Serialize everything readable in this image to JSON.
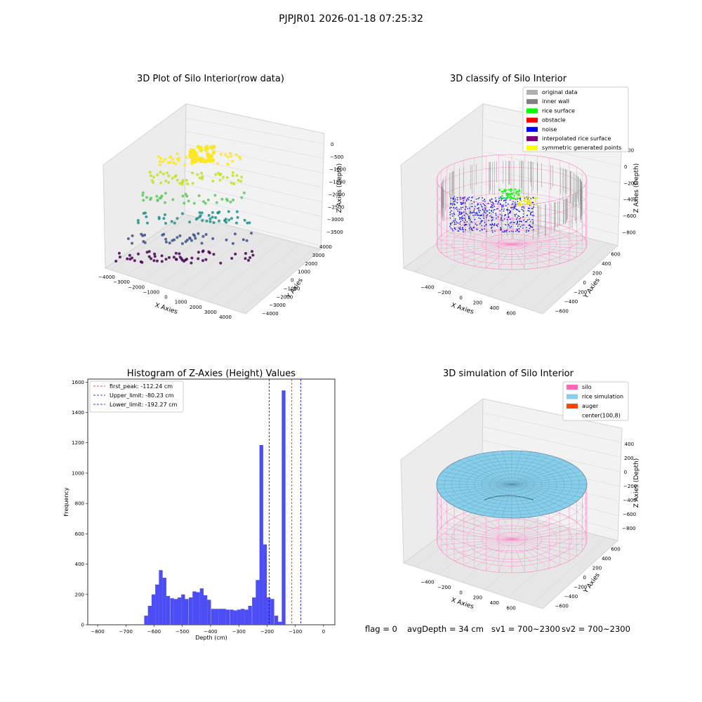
{
  "suptitle": "PJPJR01 2026-01-18 07:25:32",
  "chart_data": [
    {
      "type": "scatter",
      "projection": "3d",
      "title": "3D Plot of Silo Interior(row data)",
      "xlabel": "X Axies",
      "ylabel": "Y Axies",
      "zlabel": "Z Axies (Depth)",
      "x_ticks": [
        "−4000",
        "−3000",
        "−2000",
        "−1000",
        "0",
        "1000",
        "2000",
        "3000",
        "4000"
      ],
      "y_ticks": [
        "−4000",
        "−3000",
        "−2000",
        "−1000",
        "0",
        "1000",
        "2000",
        "3000",
        "4000"
      ],
      "z_ticks": [
        "0",
        "−500",
        "−1000",
        "−1500",
        "−2000",
        "−2500",
        "−3000",
        "−3500"
      ],
      "colormap": "viridis",
      "grid": true
    },
    {
      "type": "scatter",
      "projection": "3d",
      "title": "3D classify of Silo Interior",
      "xlabel": "X Axies",
      "ylabel": "Y Axies",
      "zlabel": "Z Axies (Depth)",
      "x_ticks": [
        "−400",
        "−200",
        "0",
        "200",
        "400",
        "600"
      ],
      "y_ticks": [
        "600",
        "400",
        "200",
        "0",
        "−200",
        "−400",
        "−600"
      ],
      "z_ticks": [
        "200",
        "0",
        "−200",
        "−400",
        "−600",
        "−800"
      ],
      "legend_position": "top-right",
      "legend": [
        {
          "label": "original data",
          "color": "#b0b0b0"
        },
        {
          "label": "inner wall",
          "color": "#808080"
        },
        {
          "label": "rice surface",
          "color": "#00ff00"
        },
        {
          "label": "obstacle",
          "color": "#ff0000"
        },
        {
          "label": "noise",
          "color": "#0000ff"
        },
        {
          "label": "interpolated rice surface",
          "color": "#800080"
        },
        {
          "label": "symmetric generated points",
          "color": "#ffff00"
        }
      ],
      "grid": true
    },
    {
      "type": "bar",
      "title": "Histogram of Z-Axies (Height) Values",
      "xlabel": "Depth (cm)",
      "ylabel": "Frequency",
      "xlim": [
        -835,
        40
      ],
      "ylim": [
        0,
        1620
      ],
      "x_ticks": [
        -800,
        -700,
        -600,
        -500,
        -400,
        -300,
        -200,
        -100,
        0
      ],
      "y_ticks": [
        0,
        200,
        400,
        600,
        800,
        1000,
        1200,
        1400,
        1600
      ],
      "bin_width": 13.2,
      "bins": [
        {
          "x": -635,
          "v": 60
        },
        {
          "x": -622,
          "v": 125
        },
        {
          "x": -609,
          "v": 200
        },
        {
          "x": -596,
          "v": 265
        },
        {
          "x": -583,
          "v": 360
        },
        {
          "x": -570,
          "v": 310
        },
        {
          "x": -557,
          "v": 190
        },
        {
          "x": -543,
          "v": 175
        },
        {
          "x": -530,
          "v": 170
        },
        {
          "x": -517,
          "v": 180
        },
        {
          "x": -504,
          "v": 200
        },
        {
          "x": -491,
          "v": 170
        },
        {
          "x": -477,
          "v": 180
        },
        {
          "x": -464,
          "v": 220
        },
        {
          "x": -451,
          "v": 215
        },
        {
          "x": -438,
          "v": 240
        },
        {
          "x": -425,
          "v": 195
        },
        {
          "x": -412,
          "v": 165
        },
        {
          "x": -398,
          "v": 105
        },
        {
          "x": -385,
          "v": 105
        },
        {
          "x": -372,
          "v": 105
        },
        {
          "x": -359,
          "v": 105
        },
        {
          "x": -346,
          "v": 100
        },
        {
          "x": -332,
          "v": 100
        },
        {
          "x": -319,
          "v": 95
        },
        {
          "x": -306,
          "v": 100
        },
        {
          "x": -293,
          "v": 105
        },
        {
          "x": -280,
          "v": 100
        },
        {
          "x": -267,
          "v": 125
        },
        {
          "x": -253,
          "v": 180
        },
        {
          "x": -240,
          "v": 295
        },
        {
          "x": -227,
          "v": 1185
        },
        {
          "x": -214,
          "v": 530
        },
        {
          "x": -201,
          "v": 180
        },
        {
          "x": -188,
          "v": 170
        },
        {
          "x": -174,
          "v": 60
        },
        {
          "x": -161,
          "v": 20
        },
        {
          "x": -148,
          "v": 1545
        }
      ],
      "vlines": [
        {
          "label": "first_peak: -112.24 cm",
          "x": -112.24,
          "color": "#ff0000"
        },
        {
          "label": "Upper_limit: -80.23 cm",
          "x": -80.23,
          "color": "#0000ff"
        },
        {
          "label": "Lower_limit: -192.27 cm",
          "x": -192.27,
          "color": "#0000ff"
        }
      ],
      "bar_color": "#4d4df5",
      "legend_position": "top-left"
    },
    {
      "type": "surface",
      "projection": "3d",
      "title": "3D simulation of Silo Interior",
      "xlabel": "X Axies",
      "ylabel": "Y Axies",
      "zlabel": "Z Axies (Depth)",
      "x_ticks": [
        "−400",
        "−200",
        "0",
        "200",
        "400",
        "600"
      ],
      "y_ticks": [
        "600",
        "400",
        "200",
        "0",
        "−200",
        "−400",
        "−600"
      ],
      "z_ticks": [
        "400",
        "200",
        "0",
        "−200",
        "−400",
        "−600",
        "−800"
      ],
      "legend_position": "top-right",
      "legend": [
        {
          "label": "silo",
          "color": "#ff69b4"
        },
        {
          "label": "rice simulation",
          "color": "#87ceeb"
        },
        {
          "label": "auger",
          "color": "#ff4500"
        },
        {
          "label": "center(100,8)",
          "color": "#ffffff"
        }
      ],
      "grid": true
    }
  ],
  "footer": {
    "flag": "flag = 0",
    "avg_depth": "avgDepth = 34 cm",
    "sv1": "sv1 = 700~2300",
    "sv2": "sv2 = 700~2300"
  }
}
